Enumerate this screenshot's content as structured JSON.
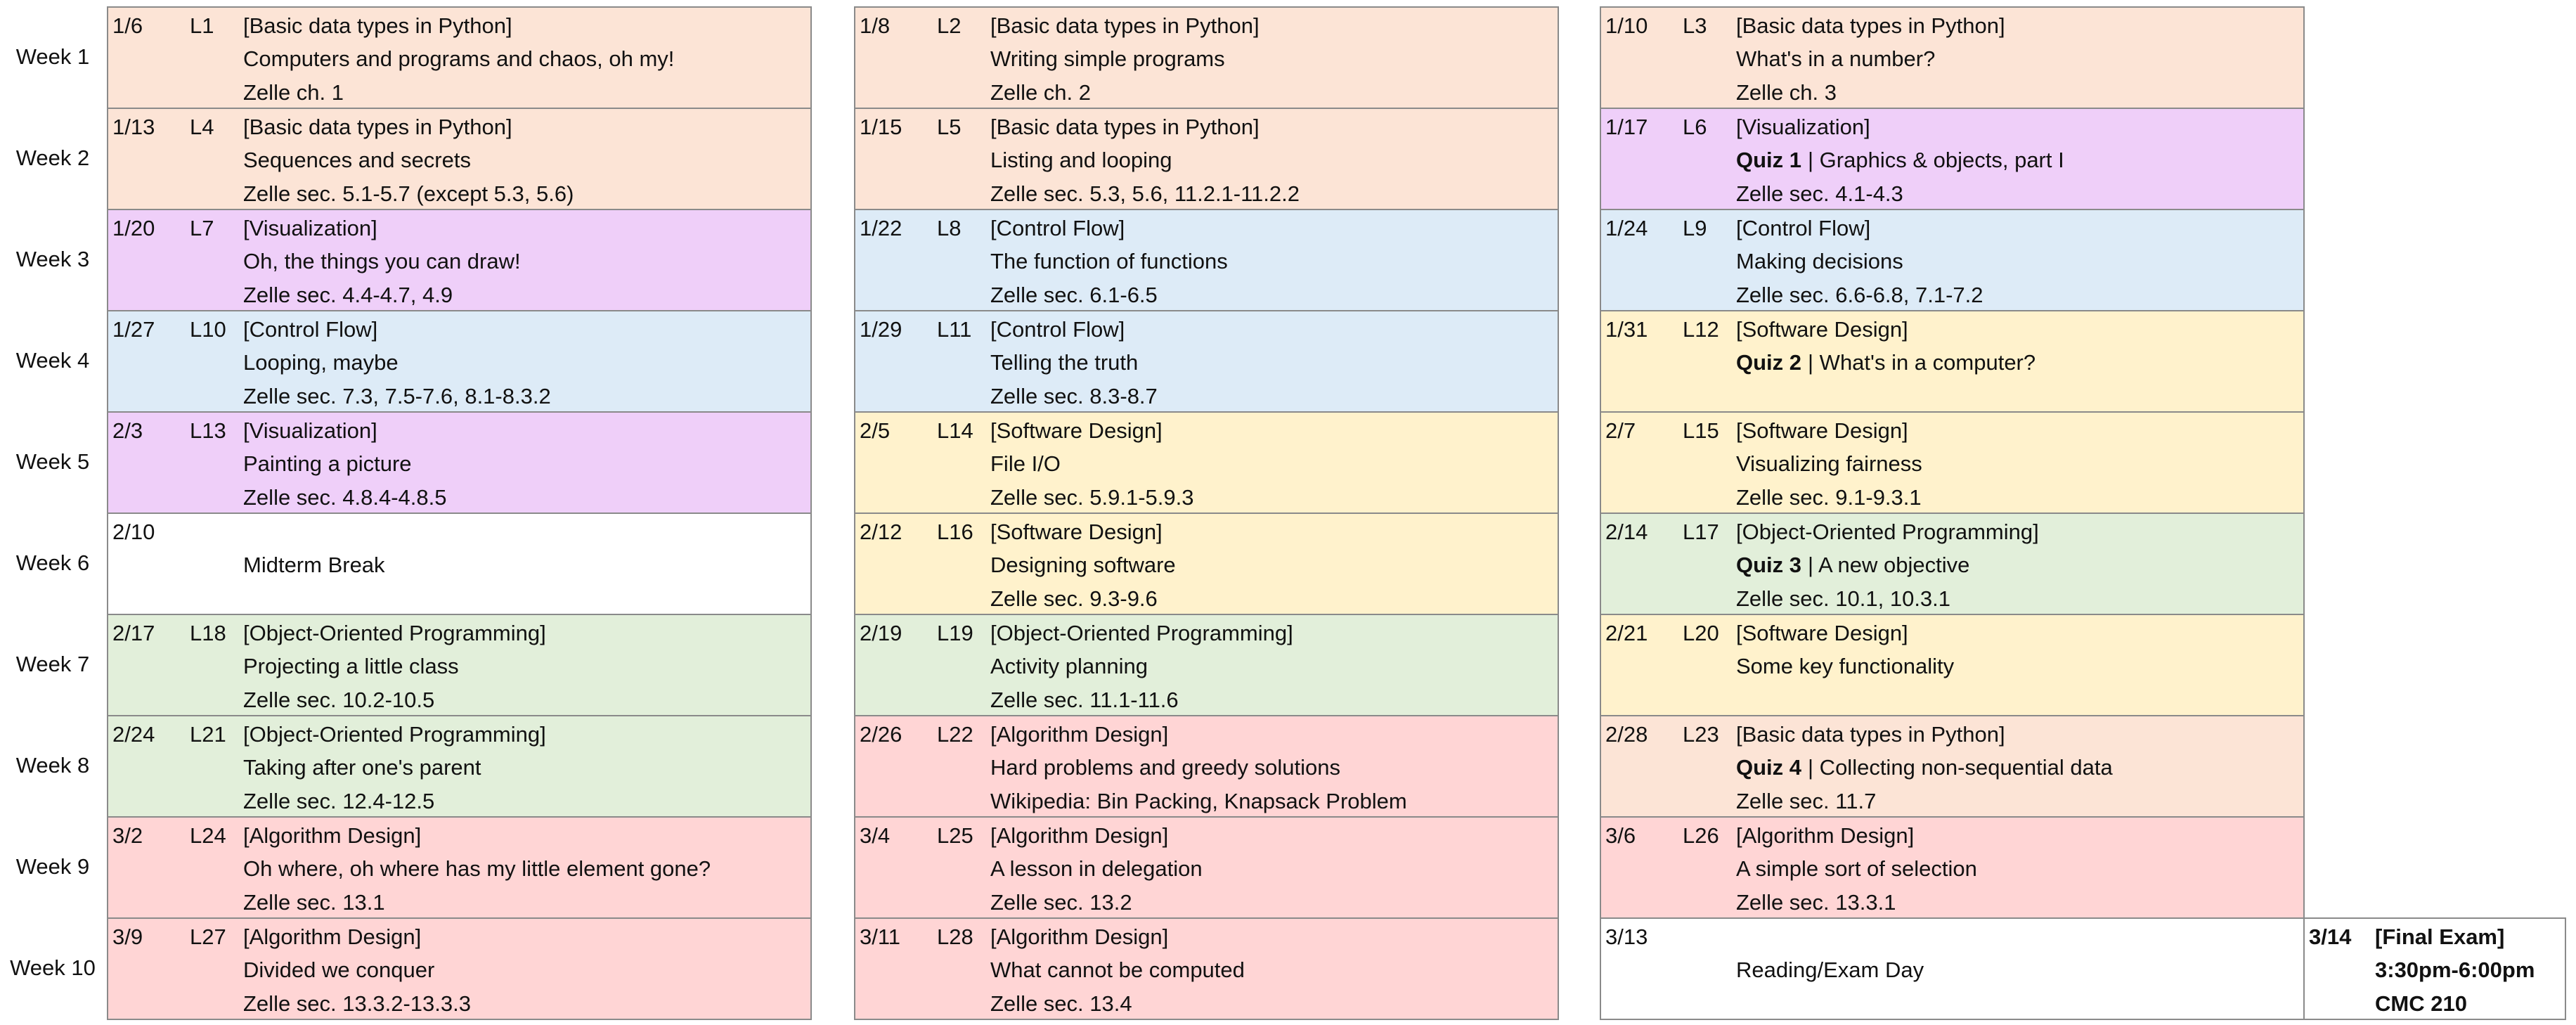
{
  "weeks": [
    {
      "label": "Week 1",
      "cells": [
        {
          "date": "1/6",
          "lecture": "L1",
          "topic": "[Basic data types in Python]",
          "title": "Computers and programs and chaos, oh my!",
          "reading": "Zelle ch. 1",
          "color": "#fce4d6"
        },
        {
          "date": "1/8",
          "lecture": "L2",
          "topic": "[Basic data types in Python]",
          "title": "Writing simple programs",
          "reading": "Zelle ch. 2",
          "color": "#fce4d6"
        },
        {
          "date": "1/10",
          "lecture": "L3",
          "topic": "[Basic data types in Python]",
          "title": "What's in a number?",
          "reading": "Zelle ch. 3",
          "color": "#fce4d6"
        }
      ]
    },
    {
      "label": "Week 2",
      "cells": [
        {
          "date": "1/13",
          "lecture": "L4",
          "topic": "[Basic data types in Python]",
          "title": "Sequences and secrets",
          "reading": "Zelle sec. 5.1-5.7 (except 5.3, 5.6)",
          "color": "#fce4d6"
        },
        {
          "date": "1/15",
          "lecture": "L5",
          "topic": "[Basic data types in Python]",
          "title": "Listing and looping",
          "reading": "Zelle sec. 5.3, 5.6, 11.2.1-11.2.2",
          "color": "#fce4d6"
        },
        {
          "date": "1/17",
          "lecture": "L6",
          "topic": "[Visualization]",
          "quiz": "Quiz 1",
          "title": "| Graphics & objects, part I",
          "reading": "Zelle sec. 4.1-4.3",
          "color": "#efcff9"
        }
      ]
    },
    {
      "label": "Week 3",
      "cells": [
        {
          "date": "1/20",
          "lecture": "L7",
          "topic": "[Visualization]",
          "title": "Oh, the things you can draw!",
          "reading": "Zelle sec. 4.4-4.7, 4.9",
          "color": "#efcff9"
        },
        {
          "date": "1/22",
          "lecture": "L8",
          "topic": "[Control Flow]",
          "title": "The function of functions",
          "reading": "Zelle sec. 6.1-6.5",
          "color": "#ddebf7"
        },
        {
          "date": "1/24",
          "lecture": "L9",
          "topic": "[Control Flow]",
          "title": "Making decisions",
          "reading": "Zelle sec. 6.6-6.8, 7.1-7.2",
          "color": "#ddebf7"
        }
      ]
    },
    {
      "label": "Week 4",
      "cells": [
        {
          "date": "1/27",
          "lecture": "L10",
          "topic": "[Control Flow]",
          "title": "Looping, maybe",
          "reading": "Zelle sec. 7.3, 7.5-7.6, 8.1-8.3.2",
          "color": "#ddebf7"
        },
        {
          "date": "1/29",
          "lecture": "L11",
          "topic": "[Control Flow]",
          "title": "Telling the truth",
          "reading": "Zelle sec. 8.3-8.7",
          "color": "#ddebf7"
        },
        {
          "date": "1/31",
          "lecture": "L12",
          "topic": "[Software Design]",
          "quiz": "Quiz 2",
          "title": "| What's in a computer?",
          "color": "#fff2cc"
        }
      ]
    },
    {
      "label": "Week 5",
      "cells": [
        {
          "date": "2/3",
          "lecture": "L13",
          "topic": "[Visualization]",
          "title": "Painting a picture",
          "reading": "Zelle sec. 4.8.4-4.8.5",
          "color": "#efcff9"
        },
        {
          "date": "2/5",
          "lecture": "L14",
          "topic": "[Software Design]",
          "title": "File I/O",
          "reading": "Zelle sec. 5.9.1-5.9.3",
          "color": "#fff2cc"
        },
        {
          "date": "2/7",
          "lecture": "L15",
          "topic": "[Software Design]",
          "title": "Visualizing fairness",
          "reading": "Zelle sec. 9.1-9.3.1",
          "color": "#fff2cc"
        }
      ]
    },
    {
      "label": "Week 6",
      "cells": [
        {
          "date": "2/10",
          "title": "Midterm Break",
          "color": "#ffffff"
        },
        {
          "date": "2/12",
          "lecture": "L16",
          "topic": "[Software Design]",
          "title": "Designing software",
          "reading": "Zelle sec. 9.3-9.6",
          "color": "#fff2cc"
        },
        {
          "date": "2/14",
          "lecture": "L17",
          "topic": "[Object-Oriented Programming]",
          "quiz": "Quiz 3",
          "title": "| A new objective",
          "reading": "Zelle sec. 10.1, 10.3.1",
          "color": "#e2efda"
        }
      ]
    },
    {
      "label": "Week 7",
      "cells": [
        {
          "date": "2/17",
          "lecture": "L18",
          "topic": "[Object-Oriented Programming]",
          "title": "Projecting a little class",
          "reading": "Zelle sec. 10.2-10.5",
          "color": "#e2efda"
        },
        {
          "date": "2/19",
          "lecture": "L19",
          "topic": "[Object-Oriented Programming]",
          "title": "Activity planning",
          "reading": "Zelle sec. 11.1-11.6",
          "color": "#e2efda"
        },
        {
          "date": "2/21",
          "lecture": "L20",
          "topic": "[Software Design]",
          "title": "Some key functionality",
          "color": "#fff2cc"
        }
      ]
    },
    {
      "label": "Week 8",
      "cells": [
        {
          "date": "2/24",
          "lecture": "L21",
          "topic": "[Object-Oriented Programming]",
          "title": "Taking after one's parent",
          "reading": "Zelle sec. 12.4-12.5",
          "color": "#e2efda"
        },
        {
          "date": "2/26",
          "lecture": "L22",
          "topic": "[Algorithm Design]",
          "title": "Hard problems and greedy solutions",
          "reading": "Wikipedia: Bin Packing, Knapsack Problem",
          "color": "#ffd5d5"
        },
        {
          "date": "2/28",
          "lecture": "L23",
          "topic": "[Basic data types in Python]",
          "quiz": "Quiz 4",
          "title": "| Collecting non-sequential data",
          "reading": "Zelle sec. 11.7",
          "color": "#fce4d6"
        }
      ]
    },
    {
      "label": "Week 9",
      "cells": [
        {
          "date": "3/2",
          "lecture": "L24",
          "topic": "[Algorithm Design]",
          "title": "Oh where, oh where has my little element gone?",
          "reading": "Zelle sec. 13.1",
          "color": "#ffd5d5"
        },
        {
          "date": "3/4",
          "lecture": "L25",
          "topic": "[Algorithm Design]",
          "title": "A lesson in delegation",
          "reading": "Zelle sec. 13.2",
          "color": "#ffd5d5"
        },
        {
          "date": "3/6",
          "lecture": "L26",
          "topic": "[Algorithm Design]",
          "title": "A simple sort of selection",
          "reading": "Zelle sec. 13.3.1",
          "color": "#ffd5d5"
        }
      ]
    },
    {
      "label": "Week 10",
      "cells": [
        {
          "date": "3/9",
          "lecture": "L27",
          "topic": "[Algorithm Design]",
          "title": "Divided we conquer",
          "reading": "Zelle sec. 13.3.2-13.3.3",
          "color": "#ffd5d5"
        },
        {
          "date": "3/11",
          "lecture": "L28",
          "topic": "[Algorithm Design]",
          "title": "What cannot be computed",
          "reading": "Zelle sec. 13.4",
          "color": "#ffd5d5"
        },
        {
          "date": "3/13",
          "title": "Reading/Exam Day",
          "color": "#ffffff"
        }
      ]
    }
  ],
  "final_exam": {
    "date": "3/14",
    "lines": [
      "[Final Exam]",
      "3:30pm-6:00pm",
      "CMC 210"
    ]
  }
}
